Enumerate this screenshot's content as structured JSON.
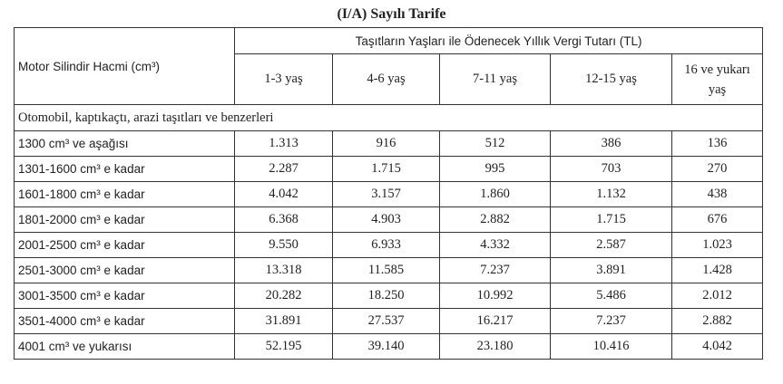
{
  "title": "(I/A) Sayılı Tarife",
  "table": {
    "row_header": "Motor Silindir Hacmi (cm³)",
    "group_header": "Taşıtların Yaşları ile Ödenecek Yıllık Vergi Tutarı (TL)",
    "age_columns": [
      "1-3 yaş",
      "4-6 yaş",
      "7-11 yaş",
      "12-15 yaş",
      "16 ve yukarı yaş"
    ],
    "section_label": "Otomobil, kaptıkaçtı, arazi taşıtları ve benzerleri",
    "rows": [
      {
        "label": "1300 cm³ ve aşağısı",
        "values": [
          "1.313",
          "916",
          "512",
          "386",
          "136"
        ]
      },
      {
        "label": "1301-1600 cm³ e kadar",
        "values": [
          "2.287",
          "1.715",
          "995",
          "703",
          "270"
        ]
      },
      {
        "label": "1601-1800 cm³ e kadar",
        "values": [
          "4.042",
          "3.157",
          "1.860",
          "1.132",
          "438"
        ]
      },
      {
        "label": "1801-2000 cm³ e kadar",
        "values": [
          "6.368",
          "4.903",
          "2.882",
          "1.715",
          "676"
        ]
      },
      {
        "label": "2001-2500 cm³ e kadar",
        "values": [
          "9.550",
          "6.933",
          "4.332",
          "2.587",
          "1.023"
        ]
      },
      {
        "label": "2501-3000 cm³ e kadar",
        "values": [
          "13.318",
          "11.585",
          "7.237",
          "3.891",
          "1.428"
        ]
      },
      {
        "label": "3001-3500 cm³ e kadar",
        "values": [
          "20.282",
          "18.250",
          "10.992",
          "5.486",
          "2.012"
        ]
      },
      {
        "label": "3501-4000 cm³ e kadar",
        "values": [
          "31.891",
          "27.537",
          "16.217",
          "7.237",
          "2.882"
        ]
      },
      {
        "label": "4001 cm³ ve yukarısı",
        "values": [
          "52.195",
          "39.140",
          "23.180",
          "10.416",
          "4.042"
        ]
      }
    ]
  }
}
